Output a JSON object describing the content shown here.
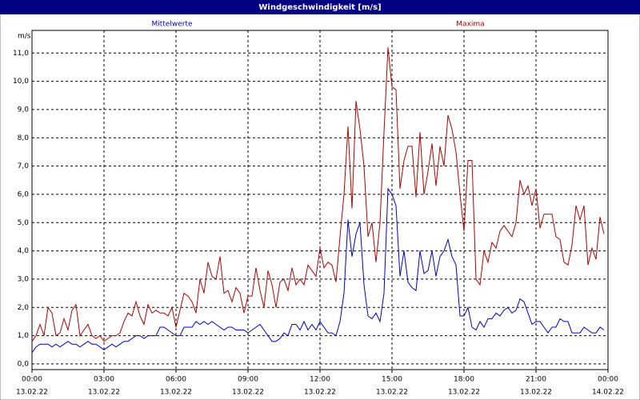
{
  "window_title": "Windgeschwindigkeit [m/s]",
  "chart_data": {
    "type": "line",
    "y_unit": "m/s",
    "x": [
      "13.02.22 00:00",
      "13.02.22 00:10",
      "13.02.22 00:20",
      "13.02.22 00:30",
      "13.02.22 00:40",
      "13.02.22 00:50",
      "13.02.22 01:00",
      "13.02.22 01:10",
      "13.02.22 01:20",
      "13.02.22 01:30",
      "13.02.22 01:40",
      "13.02.22 01:50",
      "13.02.22 02:00",
      "13.02.22 02:10",
      "13.02.22 02:20",
      "13.02.22 02:30",
      "13.02.22 02:40",
      "13.02.22 02:50",
      "13.02.22 03:00",
      "13.02.22 03:10",
      "13.02.22 03:20",
      "13.02.22 03:30",
      "13.02.22 03:40",
      "13.02.22 03:50",
      "13.02.22 04:00",
      "13.02.22 04:10",
      "13.02.22 04:20",
      "13.02.22 04:30",
      "13.02.22 04:40",
      "13.02.22 04:50",
      "13.02.22 05:00",
      "13.02.22 05:10",
      "13.02.22 05:20",
      "13.02.22 05:30",
      "13.02.22 05:40",
      "13.02.22 05:50",
      "13.02.22 06:00",
      "13.02.22 06:10",
      "13.02.22 06:20",
      "13.02.22 06:30",
      "13.02.22 06:40",
      "13.02.22 06:50",
      "13.02.22 07:00",
      "13.02.22 07:10",
      "13.02.22 07:20",
      "13.02.22 07:30",
      "13.02.22 07:40",
      "13.02.22 07:50",
      "13.02.22 08:00",
      "13.02.22 08:10",
      "13.02.22 08:20",
      "13.02.22 08:30",
      "13.02.22 08:40",
      "13.02.22 08:50",
      "13.02.22 09:00",
      "13.02.22 09:10",
      "13.02.22 09:20",
      "13.02.22 09:30",
      "13.02.22 09:40",
      "13.02.22 09:50",
      "13.02.22 10:00",
      "13.02.22 10:10",
      "13.02.22 10:20",
      "13.02.22 10:30",
      "13.02.22 10:40",
      "13.02.22 10:50",
      "13.02.22 11:00",
      "13.02.22 11:10",
      "13.02.22 11:20",
      "13.02.22 11:30",
      "13.02.22 11:40",
      "13.02.22 11:50",
      "13.02.22 12:00",
      "13.02.22 12:10",
      "13.02.22 12:20",
      "13.02.22 12:30",
      "13.02.22 12:40",
      "13.02.22 12:50",
      "13.02.22 13:00",
      "13.02.22 13:10",
      "13.02.22 13:20",
      "13.02.22 13:30",
      "13.02.22 13:40",
      "13.02.22 13:50",
      "13.02.22 14:00",
      "13.02.22 14:10",
      "13.02.22 14:20",
      "13.02.22 14:30",
      "13.02.22 14:40",
      "13.02.22 14:50",
      "13.02.22 15:00",
      "13.02.22 15:10",
      "13.02.22 15:20",
      "13.02.22 15:30",
      "13.02.22 15:40",
      "13.02.22 15:50",
      "13.02.22 16:00",
      "13.02.22 16:10",
      "13.02.22 16:20",
      "13.02.22 16:30",
      "13.02.22 16:40",
      "13.02.22 16:50",
      "13.02.22 17:00",
      "13.02.22 17:10",
      "13.02.22 17:20",
      "13.02.22 17:30",
      "13.02.22 17:40",
      "13.02.22 17:50",
      "13.02.22 18:00",
      "13.02.22 18:10",
      "13.02.22 18:20",
      "13.02.22 18:30",
      "13.02.22 18:40",
      "13.02.22 18:50",
      "13.02.22 19:00",
      "13.02.22 19:10",
      "13.02.22 19:20",
      "13.02.22 19:30",
      "13.02.22 19:40",
      "13.02.22 19:50",
      "13.02.22 20:00",
      "13.02.22 20:10",
      "13.02.22 20:20",
      "13.02.22 20:30",
      "13.02.22 20:40",
      "13.02.22 20:50",
      "13.02.22 21:00",
      "13.02.22 21:10",
      "13.02.22 21:20",
      "13.02.22 21:30",
      "13.02.22 21:40",
      "13.02.22 21:50",
      "13.02.22 22:00",
      "13.02.22 22:10",
      "13.02.22 22:20",
      "13.02.22 22:30",
      "13.02.22 22:40",
      "13.02.22 22:50",
      "13.02.22 23:00",
      "13.02.22 23:10",
      "13.02.22 23:20",
      "13.02.22 23:30",
      "13.02.22 23:40",
      "13.02.22 23:50"
    ],
    "series": [
      {
        "name": "Mittelwerte",
        "color": "#0000c8",
        "values": [
          0.4,
          0.6,
          0.7,
          0.7,
          0.7,
          0.6,
          0.7,
          0.6,
          0.7,
          0.8,
          0.7,
          0.7,
          0.6,
          0.7,
          0.8,
          0.7,
          0.7,
          0.6,
          0.5,
          0.6,
          0.7,
          0.6,
          0.7,
          0.8,
          0.8,
          0.9,
          1.0,
          1.0,
          0.9,
          1.0,
          1.0,
          1.0,
          1.3,
          1.3,
          1.2,
          1.1,
          1.0,
          1.0,
          1.3,
          1.3,
          1.3,
          1.5,
          1.4,
          1.5,
          1.4,
          1.5,
          1.4,
          1.3,
          1.2,
          1.3,
          1.3,
          1.2,
          1.2,
          1.2,
          1.1,
          1.2,
          1.3,
          1.4,
          1.2,
          1.0,
          0.8,
          0.8,
          0.9,
          1.1,
          1.0,
          1.4,
          1.4,
          1.2,
          1.5,
          1.2,
          1.4,
          1.2,
          1.5,
          1.3,
          1.1,
          1.1,
          1.0,
          1.5,
          2.5,
          5.1,
          3.8,
          4.6,
          5.0,
          2.8,
          1.7,
          1.6,
          1.8,
          1.5,
          2.5,
          6.2,
          6.0,
          5.6,
          3.1,
          4.0,
          2.9,
          2.7,
          2.6,
          4.0,
          3.2,
          3.3,
          4.0,
          3.1,
          3.8,
          4.0,
          4.4,
          3.8,
          3.5,
          1.7,
          1.7,
          2.0,
          1.3,
          1.2,
          1.5,
          1.3,
          1.6,
          1.6,
          1.8,
          1.7,
          1.9,
          2.0,
          1.8,
          1.9,
          2.3,
          2.2,
          1.8,
          1.4,
          1.5,
          1.5,
          1.3,
          1.1,
          1.3,
          1.3,
          1.6,
          1.5,
          1.5,
          1.1,
          1.1,
          1.1,
          1.3,
          1.2,
          1.1,
          1.1,
          1.3,
          1.2
        ]
      },
      {
        "name": "Maxima",
        "color": "#b40000",
        "values": [
          0.8,
          1.0,
          1.4,
          1.0,
          2.0,
          1.8,
          1.0,
          1.1,
          1.6,
          1.2,
          1.9,
          2.1,
          1.0,
          1.2,
          1.4,
          1.0,
          0.9,
          1.0,
          0.8,
          0.9,
          1.0,
          1.0,
          1.1,
          1.5,
          1.8,
          1.7,
          2.2,
          1.7,
          1.4,
          2.1,
          1.8,
          1.9,
          1.8,
          1.8,
          1.7,
          2.0,
          1.3,
          1.9,
          2.5,
          2.4,
          2.2,
          1.8,
          3.0,
          2.5,
          3.6,
          3.1,
          3.0,
          3.8,
          2.5,
          2.6,
          2.2,
          2.7,
          2.5,
          1.8,
          2.4,
          2.4,
          3.4,
          2.6,
          2.0,
          3.3,
          2.8,
          2.0,
          2.9,
          3.0,
          2.6,
          3.4,
          2.8,
          3.0,
          2.8,
          3.5,
          3.3,
          3.1,
          4.1,
          3.4,
          3.6,
          3.5,
          2.9,
          4.5,
          6.0,
          8.4,
          5.5,
          9.3,
          8.3,
          7.0,
          4.5,
          5.0,
          3.6,
          5.0,
          8.2,
          11.2,
          9.8,
          9.7,
          6.2,
          7.2,
          7.7,
          7.7,
          5.9,
          8.2,
          6.0,
          6.8,
          7.8,
          6.3,
          7.7,
          7.0,
          8.8,
          8.3,
          7.5,
          6.0,
          4.7,
          7.2,
          7.2,
          3.0,
          2.8,
          4.0,
          3.6,
          4.3,
          4.1,
          4.7,
          4.9,
          4.7,
          4.5,
          5.0,
          6.5,
          6.0,
          6.3,
          5.6,
          6.2,
          4.8,
          5.3,
          5.3,
          5.3,
          4.5,
          4.4,
          3.6,
          3.5,
          4.2,
          5.6,
          5.1,
          5.6,
          3.5,
          4.1,
          3.7,
          5.2,
          4.6
        ]
      }
    ],
    "xlim": [
      "13.02.22 00:00",
      "14.02.22 00:00"
    ],
    "xticks": [
      {
        "value": "13.02.22 00:00",
        "label": "00:00",
        "date": "13.02.22"
      },
      {
        "value": "13.02.22 03:00",
        "label": "03:00",
        "date": "13.02.22"
      },
      {
        "value": "13.02.22 06:00",
        "label": "06:00",
        "date": "13.02.22"
      },
      {
        "value": "13.02.22 09:00",
        "label": "09:00",
        "date": "13.02.22"
      },
      {
        "value": "13.02.22 12:00",
        "label": "12:00",
        "date": "13.02.22"
      },
      {
        "value": "13.02.22 15:00",
        "label": "15:00",
        "date": "13.02.22"
      },
      {
        "value": "13.02.22 18:00",
        "label": "18:00",
        "date": "13.02.22"
      },
      {
        "value": "13.02.22 21:00",
        "label": "21:00",
        "date": "13.02.22"
      },
      {
        "value": "14.02.22 00:00",
        "label": "00:00",
        "date": "14.02.22"
      }
    ],
    "ylim": [
      -0.2,
      11.8
    ],
    "yticks": [
      {
        "value": 0,
        "label": "0,0"
      },
      {
        "value": 1,
        "label": "1,0"
      },
      {
        "value": 2,
        "label": "2,0"
      },
      {
        "value": 3,
        "label": "3,0"
      },
      {
        "value": 4,
        "label": "4,0"
      },
      {
        "value": 5,
        "label": "5,0"
      },
      {
        "value": 6,
        "label": "6,0"
      },
      {
        "value": 7,
        "label": "7,0"
      },
      {
        "value": 8,
        "label": "8,0"
      },
      {
        "value": 9,
        "label": "9,0"
      },
      {
        "value": 10,
        "label": "10,0"
      },
      {
        "value": 11,
        "label": "11,0"
      }
    ],
    "grid": true
  }
}
